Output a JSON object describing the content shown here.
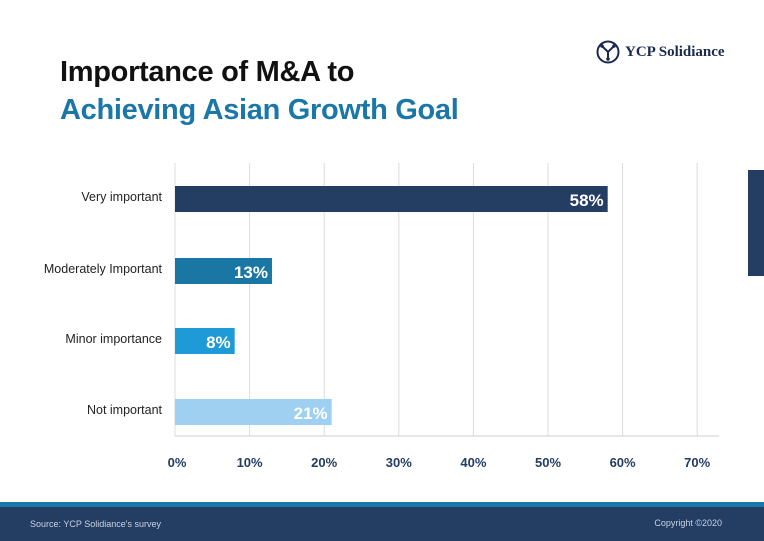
{
  "title_line1": "Importance of M&A to",
  "title_line2": "Achieving Asian Growth Goal",
  "logo_text": "YCP Solidiance",
  "footer": {
    "source": "Source: YCP Solidiance's survey",
    "copyright": "Copyright ©2020"
  },
  "chart_data": {
    "type": "bar",
    "orientation": "horizontal",
    "categories": [
      "Very important",
      "Moderately Important",
      "Minor importance",
      "Not important"
    ],
    "values": [
      58,
      13,
      8,
      21
    ],
    "data_labels": [
      "58%",
      "13%",
      "8%",
      "21%"
    ],
    "colors": [
      "#243d63",
      "#1a77a3",
      "#1e9ad6",
      "#9fd0f2"
    ],
    "xlim": [
      0,
      70
    ],
    "xticks": [
      "0%",
      "10%",
      "20%",
      "30%",
      "40%",
      "50%",
      "60%",
      "70%"
    ],
    "grid": true,
    "title": "",
    "xlabel": "",
    "ylabel": ""
  }
}
